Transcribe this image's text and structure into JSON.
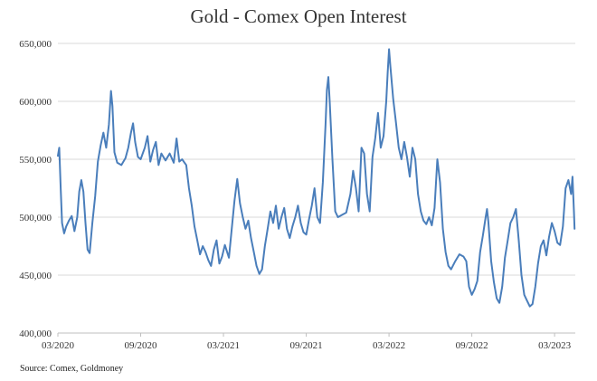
{
  "chart_data": {
    "type": "line",
    "title": "Gold - Comex Open Interest",
    "source": "Source: Comex, Goldmoney",
    "xlabel": "",
    "ylabel": "",
    "xlim": [
      0,
      37.5
    ],
    "ylim": [
      400000,
      650000
    ],
    "grid": "horizontal",
    "legend": "none",
    "line_color": "#4a7ebb",
    "y_ticks": [
      {
        "value": 400000,
        "label": "400,000"
      },
      {
        "value": 450000,
        "label": "450,000"
      },
      {
        "value": 500000,
        "label": "500,000"
      },
      {
        "value": 550000,
        "label": "550,000"
      },
      {
        "value": 600000,
        "label": "600,000"
      },
      {
        "value": 650000,
        "label": "650,000"
      }
    ],
    "x_ticks": [
      {
        "value": 0,
        "label": "03/2020"
      },
      {
        "value": 6,
        "label": "09/2020"
      },
      {
        "value": 12,
        "label": "03/2021"
      },
      {
        "value": 18,
        "label": "09/2021"
      },
      {
        "value": 24,
        "label": "03/2022"
      },
      {
        "value": 30,
        "label": "09/2022"
      },
      {
        "value": 36,
        "label": "03/2023"
      }
    ],
    "series": [
      {
        "values": [
          [
            0.0,
            553000
          ],
          [
            0.1,
            560000
          ],
          [
            0.2,
            525000
          ],
          [
            0.3,
            495000
          ],
          [
            0.45,
            486000
          ],
          [
            0.6,
            492000
          ],
          [
            0.8,
            497000
          ],
          [
            1.0,
            501000
          ],
          [
            1.2,
            488000
          ],
          [
            1.4,
            500000
          ],
          [
            1.55,
            522000
          ],
          [
            1.7,
            532000
          ],
          [
            1.85,
            522000
          ],
          [
            2.0,
            495000
          ],
          [
            2.15,
            472000
          ],
          [
            2.3,
            469000
          ],
          [
            2.5,
            495000
          ],
          [
            2.7,
            518000
          ],
          [
            2.9,
            548000
          ],
          [
            3.1,
            562000
          ],
          [
            3.3,
            573000
          ],
          [
            3.5,
            560000
          ],
          [
            3.7,
            580000
          ],
          [
            3.85,
            609000
          ],
          [
            3.95,
            596000
          ],
          [
            4.1,
            556000
          ],
          [
            4.3,
            547000
          ],
          [
            4.6,
            545000
          ],
          [
            4.9,
            551000
          ],
          [
            5.1,
            560000
          ],
          [
            5.3,
            573000
          ],
          [
            5.45,
            581000
          ],
          [
            5.6,
            565000
          ],
          [
            5.8,
            552000
          ],
          [
            6.0,
            550000
          ],
          [
            6.3,
            560000
          ],
          [
            6.5,
            570000
          ],
          [
            6.7,
            548000
          ],
          [
            6.9,
            558000
          ],
          [
            7.1,
            565000
          ],
          [
            7.3,
            545000
          ],
          [
            7.5,
            555000
          ],
          [
            7.8,
            549000
          ],
          [
            8.1,
            555000
          ],
          [
            8.4,
            547000
          ],
          [
            8.6,
            568000
          ],
          [
            8.8,
            548000
          ],
          [
            9.0,
            550000
          ],
          [
            9.3,
            545000
          ],
          [
            9.5,
            525000
          ],
          [
            9.7,
            510000
          ],
          [
            9.9,
            492000
          ],
          [
            10.1,
            480000
          ],
          [
            10.3,
            468000
          ],
          [
            10.5,
            475000
          ],
          [
            10.7,
            470000
          ],
          [
            10.9,
            463000
          ],
          [
            11.1,
            458000
          ],
          [
            11.3,
            472000
          ],
          [
            11.5,
            480000
          ],
          [
            11.7,
            460000
          ],
          [
            11.9,
            466000
          ],
          [
            12.1,
            476000
          ],
          [
            12.4,
            465000
          ],
          [
            12.6,
            490000
          ],
          [
            12.8,
            514000
          ],
          [
            13.0,
            533000
          ],
          [
            13.2,
            512000
          ],
          [
            13.4,
            500000
          ],
          [
            13.6,
            490000
          ],
          [
            13.8,
            497000
          ],
          [
            14.0,
            482000
          ],
          [
            14.2,
            470000
          ],
          [
            14.4,
            458000
          ],
          [
            14.6,
            451000
          ],
          [
            14.8,
            455000
          ],
          [
            15.0,
            475000
          ],
          [
            15.2,
            490000
          ],
          [
            15.4,
            505000
          ],
          [
            15.6,
            495000
          ],
          [
            15.8,
            510000
          ],
          [
            16.0,
            490000
          ],
          [
            16.2,
            500000
          ],
          [
            16.4,
            508000
          ],
          [
            16.6,
            490000
          ],
          [
            16.8,
            482000
          ],
          [
            17.0,
            492000
          ],
          [
            17.2,
            500000
          ],
          [
            17.4,
            510000
          ],
          [
            17.6,
            495000
          ],
          [
            17.8,
            487000
          ],
          [
            18.0,
            485000
          ],
          [
            18.2,
            498000
          ],
          [
            18.4,
            510000
          ],
          [
            18.6,
            525000
          ],
          [
            18.8,
            500000
          ],
          [
            19.0,
            495000
          ],
          [
            19.2,
            530000
          ],
          [
            19.4,
            580000
          ],
          [
            19.5,
            610000
          ],
          [
            19.6,
            621000
          ],
          [
            19.7,
            600000
          ],
          [
            19.9,
            550000
          ],
          [
            20.1,
            505000
          ],
          [
            20.3,
            500000
          ],
          [
            20.6,
            502000
          ],
          [
            20.9,
            504000
          ],
          [
            21.2,
            520000
          ],
          [
            21.4,
            540000
          ],
          [
            21.6,
            525000
          ],
          [
            21.8,
            505000
          ],
          [
            22.0,
            560000
          ],
          [
            22.2,
            555000
          ],
          [
            22.4,
            520000
          ],
          [
            22.6,
            505000
          ],
          [
            22.8,
            552000
          ],
          [
            23.0,
            568000
          ],
          [
            23.2,
            590000
          ],
          [
            23.4,
            560000
          ],
          [
            23.6,
            570000
          ],
          [
            23.8,
            600000
          ],
          [
            23.9,
            625000
          ],
          [
            24.0,
            645000
          ],
          [
            24.1,
            630000
          ],
          [
            24.3,
            602000
          ],
          [
            24.5,
            582000
          ],
          [
            24.7,
            560000
          ],
          [
            24.9,
            550000
          ],
          [
            25.1,
            565000
          ],
          [
            25.3,
            552000
          ],
          [
            25.5,
            535000
          ],
          [
            25.7,
            560000
          ],
          [
            25.9,
            550000
          ],
          [
            26.1,
            520000
          ],
          [
            26.3,
            505000
          ],
          [
            26.5,
            497000
          ],
          [
            26.7,
            494000
          ],
          [
            26.9,
            500000
          ],
          [
            27.1,
            493000
          ],
          [
            27.3,
            508000
          ],
          [
            27.5,
            550000
          ],
          [
            27.7,
            530000
          ],
          [
            27.9,
            490000
          ],
          [
            28.1,
            470000
          ],
          [
            28.3,
            458000
          ],
          [
            28.5,
            455000
          ],
          [
            28.8,
            462000
          ],
          [
            29.1,
            468000
          ],
          [
            29.4,
            466000
          ],
          [
            29.6,
            462000
          ],
          [
            29.8,
            440000
          ],
          [
            30.0,
            433000
          ],
          [
            30.2,
            438000
          ],
          [
            30.4,
            445000
          ],
          [
            30.6,
            470000
          ],
          [
            30.8,
            484000
          ],
          [
            31.0,
            500000
          ],
          [
            31.1,
            507000
          ],
          [
            31.2,
            496000
          ],
          [
            31.4,
            462000
          ],
          [
            31.6,
            444000
          ],
          [
            31.8,
            430000
          ],
          [
            32.0,
            426000
          ],
          [
            32.2,
            440000
          ],
          [
            32.4,
            465000
          ],
          [
            32.6,
            480000
          ],
          [
            32.8,
            495000
          ],
          [
            33.0,
            500000
          ],
          [
            33.2,
            507000
          ],
          [
            33.4,
            480000
          ],
          [
            33.6,
            450000
          ],
          [
            33.8,
            433000
          ],
          [
            34.0,
            428000
          ],
          [
            34.2,
            423000
          ],
          [
            34.4,
            425000
          ],
          [
            34.6,
            440000
          ],
          [
            34.8,
            460000
          ],
          [
            35.0,
            475000
          ],
          [
            35.2,
            480000
          ],
          [
            35.4,
            467000
          ],
          [
            35.6,
            483000
          ],
          [
            35.8,
            495000
          ],
          [
            36.0,
            488000
          ],
          [
            36.2,
            478000
          ],
          [
            36.4,
            476000
          ],
          [
            36.6,
            492000
          ],
          [
            36.8,
            525000
          ],
          [
            37.0,
            532000
          ],
          [
            37.2,
            520000
          ],
          [
            37.3,
            535000
          ],
          [
            37.4,
            505000
          ],
          [
            37.45,
            490000
          ]
        ]
      }
    ]
  }
}
